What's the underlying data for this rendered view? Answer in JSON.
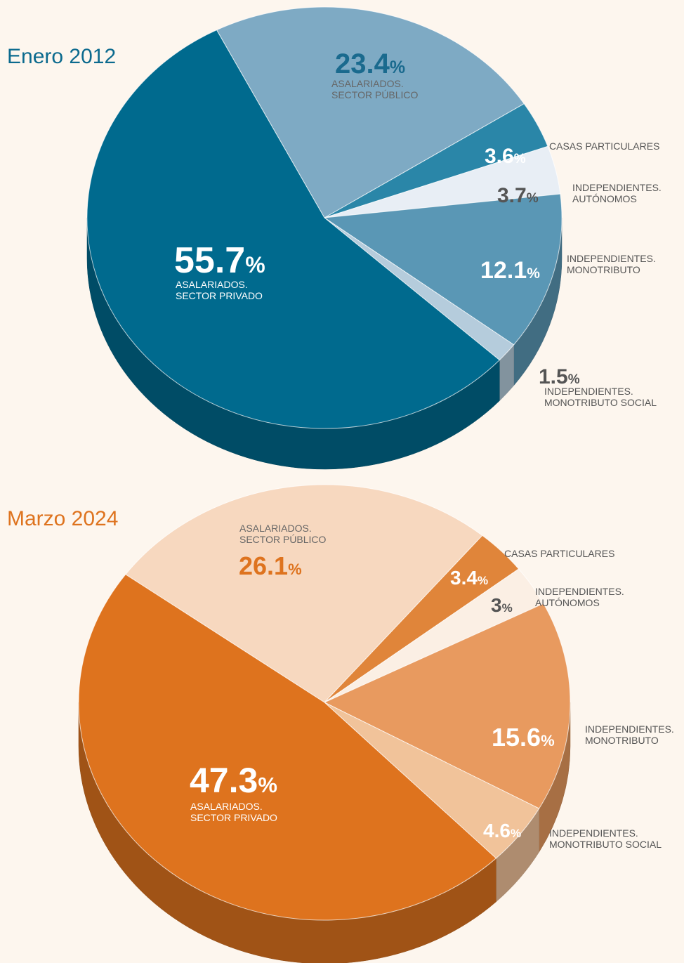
{
  "chart_data": [
    {
      "type": "pie",
      "title": "Enero 2012",
      "categories": [
        "ASALARIADOS. SECTOR PÚBLICO",
        "CASAS PARTICULARES",
        "INDEPENDIENTES. AUTÓNOMOS",
        "INDEPENDIENTES. MONOTRIBUTO",
        "INDEPENDIENTES. MONOTRIBUTO SOCIAL",
        "ASALARIADOS. SECTOR PRIVADO"
      ],
      "values": [
        23.4,
        3.6,
        3.7,
        12.1,
        1.5,
        55.7
      ],
      "value_labels": [
        "23.4%",
        "3.6%",
        "3.7%",
        "12.1%",
        "1.5%",
        "55.7%"
      ],
      "colors": [
        "#7eaac4",
        "#2a86a8",
        "#e8eef5",
        "#5a97b5",
        "#b5ccdc",
        "#006a8e"
      ],
      "title_color": "#0b6a8e"
    },
    {
      "type": "pie",
      "title": "Marzo 2024",
      "categories": [
        "ASALARIADOS. SECTOR PÚBLICO",
        "CASAS PARTICULARES",
        "INDEPENDIENTES. AUTÓNOMOS",
        "INDEPENDIENTES. MONOTRIBUTO",
        "INDEPENDIENTES. MONOTRIBUTO SOCIAL",
        "ASALARIADOS. SECTOR PRIVADO"
      ],
      "values": [
        26.1,
        3.4,
        3,
        15.6,
        4.6,
        47.3
      ],
      "value_labels": [
        "26.1%",
        "3.4%",
        "3%",
        "15.6%",
        "4.6%",
        "47.3%"
      ],
      "colors": [
        "#f7d8bf",
        "#e0853a",
        "#fbefe4",
        "#e89a5f",
        "#f1c39a",
        "#de731e"
      ],
      "title_color": "#de731e"
    }
  ]
}
